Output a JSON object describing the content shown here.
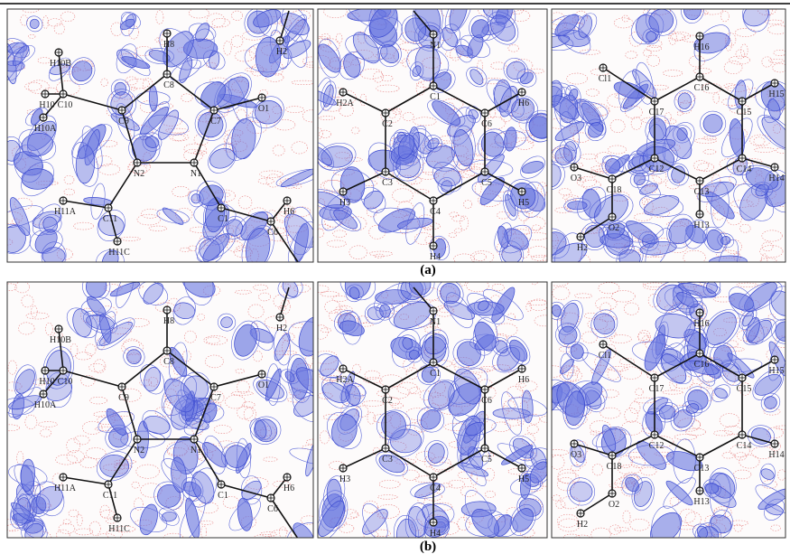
{
  "figure": {
    "rows": [
      {
        "caption": "(a)",
        "panels": [
          {
            "atoms": [
              "H10B",
              "C10",
              "H10",
              "H10A",
              "C9",
              "H8",
              "C8",
              "C7",
              "O1",
              "H2",
              "N2",
              "N1",
              "C11",
              "H11A",
              "H11C",
              "C1",
              "H6",
              "C6"
            ]
          },
          {
            "atoms": [
              "N1",
              "C1",
              "C2",
              "H2A",
              "C6",
              "H6",
              "C3",
              "H3",
              "C5",
              "H5",
              "C4",
              "H4"
            ]
          },
          {
            "atoms": [
              "H16",
              "C16",
              "C17",
              "Cl1",
              "C15",
              "H15",
              "C12",
              "C14",
              "H14",
              "C13",
              "H13",
              "C18",
              "O3",
              "O2",
              "H2"
            ]
          }
        ]
      },
      {
        "caption": "(b)",
        "panels": [
          {
            "atoms": [
              "H10B",
              "C10",
              "H10",
              "H10A",
              "C9",
              "H8",
              "C8",
              "C7",
              "O1",
              "H2",
              "N2",
              "N1",
              "C11",
              "H11A",
              "H11C",
              "C1",
              "H6",
              "C6"
            ]
          },
          {
            "atoms": [
              "N1",
              "C1",
              "C2",
              "H2A",
              "C6",
              "H6",
              "C3",
              "H3",
              "C5",
              "H5",
              "C4",
              "H4"
            ]
          },
          {
            "atoms": [
              "H16",
              "C16",
              "C17",
              "Cl1",
              "C15",
              "H15",
              "C12",
              "C14",
              "H14",
              "C13",
              "H13",
              "C18",
              "O3",
              "O2",
              "H2"
            ]
          }
        ]
      }
    ]
  }
}
